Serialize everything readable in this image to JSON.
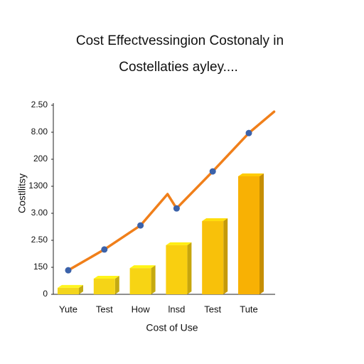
{
  "chart_data": {
    "type": "bar-line",
    "title": "Cost Effectvessingion Costonaly in",
    "subtitle": "Costellaties ayley....",
    "y_label": "Costllitsy",
    "x_label": "Cost of Use",
    "categories": [
      "Yute",
      "Test",
      "How",
      "lnsd",
      "Test",
      "Tute"
    ],
    "ylim": [
      0,
      7
    ],
    "yticks": [
      0,
      {
        "value": 1,
        "label": "150"
      },
      {
        "value": 2,
        "label": "2.50"
      },
      {
        "value": 3,
        "label": "3.00"
      },
      {
        "value": 4,
        "label": "1300"
      },
      {
        "value": 5,
        "label": "200"
      },
      {
        "value": 6,
        "label": "8.00"
      },
      {
        "value": 7,
        "label": "2.50"
      }
    ],
    "series": [
      {
        "type": "bar",
        "values": [
          0.24,
          0.58,
          0.97,
          1.82,
          2.71,
          4.37
        ],
        "colors": [
          "#f3d51c",
          "#f5d417",
          "#f7d414",
          "#f9cf10",
          "#f8c10a",
          "#f8b104"
        ]
      },
      {
        "type": "line",
        "color": "#f07f1a",
        "marker_color": "#3b62aa",
        "x": [
          0,
          1,
          2,
          2.75,
          3,
          4,
          5,
          5.7
        ],
        "values": [
          0.89,
          1.66,
          2.55,
          3.71,
          3.18,
          4.55,
          5.97,
          6.76
        ],
        "markers": [
          true,
          true,
          true,
          false,
          true,
          true,
          true,
          false
        ]
      }
    ]
  }
}
